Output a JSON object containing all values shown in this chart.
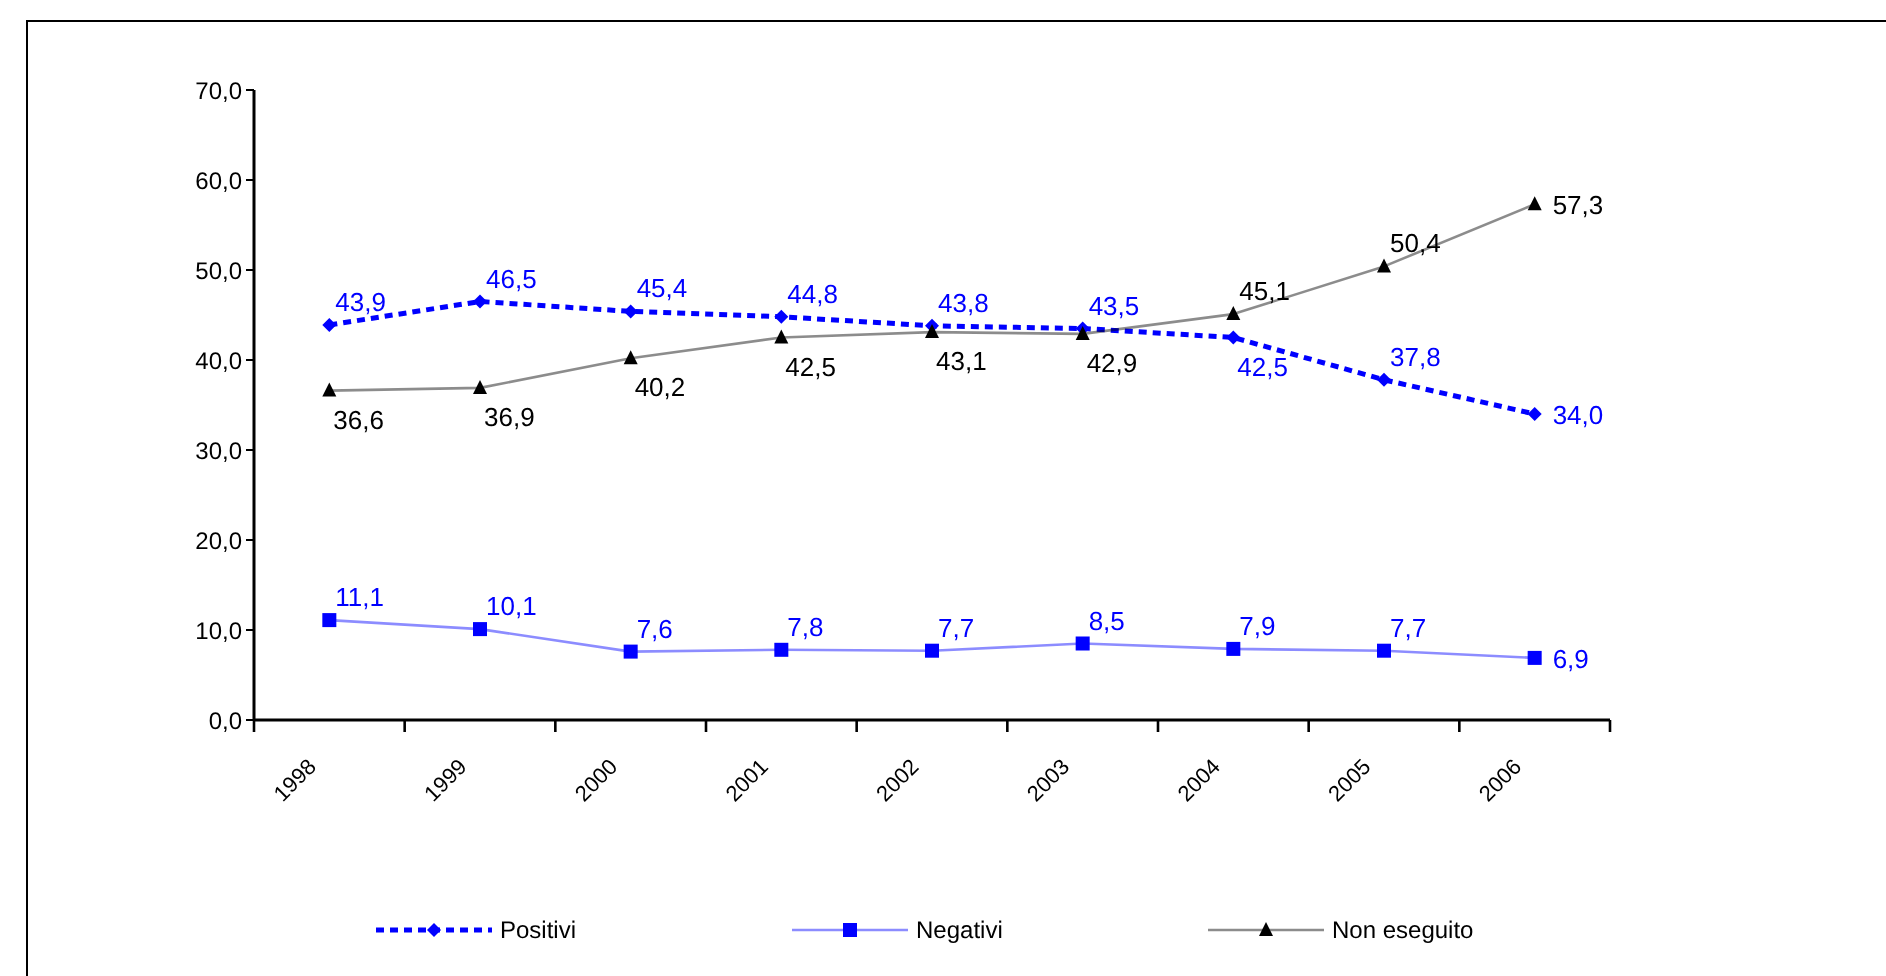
{
  "chart_data": {
    "type": "line",
    "categories": [
      "1998",
      "1999",
      "2000",
      "2001",
      "2002",
      "2003",
      "2004",
      "2005",
      "2006"
    ],
    "ylim": [
      0,
      70
    ],
    "yticks": [
      {
        "value": 0,
        "label": "0,0"
      },
      {
        "value": 10,
        "label": "10,0"
      },
      {
        "value": 20,
        "label": "20,0"
      },
      {
        "value": 30,
        "label": "30,0"
      },
      {
        "value": 40,
        "label": "40,0"
      },
      {
        "value": 50,
        "label": "50,0"
      },
      {
        "value": 60,
        "label": "60,0"
      },
      {
        "value": 70,
        "label": "70,0"
      }
    ],
    "grid": false,
    "legend": "bottom",
    "series": [
      {
        "name": "Positivi",
        "color": "#0000ff",
        "line_style": "dotted",
        "marker": "diamond",
        "values": [
          43.9,
          46.5,
          45.4,
          44.8,
          43.8,
          43.5,
          42.5,
          37.8,
          34.0
        ],
        "value_labels": [
          "43,9",
          "46,5",
          "45,4",
          "44,8",
          "43,8",
          "43,5",
          "42,5",
          "37,8",
          "34,0"
        ]
      },
      {
        "name": "Negativi",
        "color": "#0000ff",
        "line_style": "solid",
        "marker": "square",
        "values": [
          11.1,
          10.1,
          7.6,
          7.8,
          7.7,
          8.5,
          7.9,
          7.7,
          6.9
        ],
        "value_labels": [
          "11,1",
          "10,1",
          "7,6",
          "7,8",
          "7,7",
          "8,5",
          "7,9",
          "7,7",
          "6,9"
        ]
      },
      {
        "name": "Non eseguito",
        "color": "#000000",
        "line_style": "solid",
        "marker": "triangle",
        "values": [
          36.6,
          36.9,
          40.2,
          42.5,
          43.1,
          42.9,
          45.1,
          50.4,
          57.3
        ],
        "value_labels": [
          "36,6",
          "36,9",
          "40,2",
          "42,5",
          "43,1",
          "42,9",
          "45,1",
          "50,4",
          "57,3"
        ]
      }
    ]
  }
}
